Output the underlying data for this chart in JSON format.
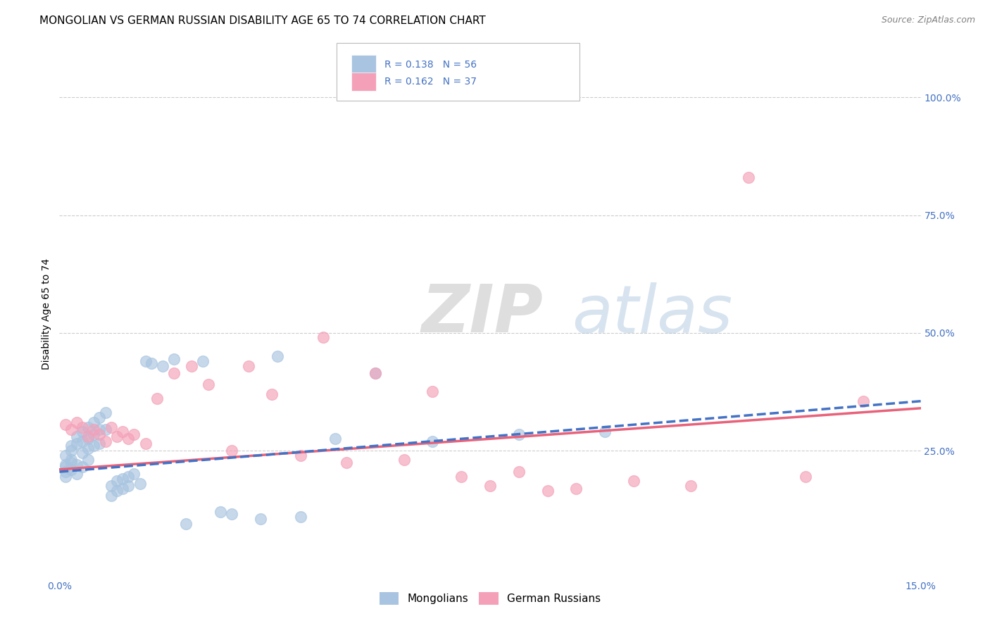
{
  "title": "MONGOLIAN VS GERMAN RUSSIAN DISABILITY AGE 65 TO 74 CORRELATION CHART",
  "source": "Source: ZipAtlas.com",
  "ylabel": "Disability Age 65 to 74",
  "xlim": [
    0.0,
    0.15
  ],
  "ylim": [
    -0.02,
    1.1
  ],
  "yticks_right": [
    0.25,
    0.5,
    0.75,
    1.0
  ],
  "ytick_labels_right": [
    "25.0%",
    "50.0%",
    "75.0%",
    "100.0%"
  ],
  "mongolian_color": "#a8c4e0",
  "german_russian_color": "#f4a0b8",
  "mongolian_line_color": "#4472c4",
  "german_russian_line_color": "#e8627a",
  "mongolian_line_style": "--",
  "german_russian_line_style": "-",
  "r_mongolian": 0.138,
  "n_mongolian": 56,
  "r_german_russian": 0.162,
  "n_german_russian": 37,
  "legend_label_mongolian": "Mongolians",
  "legend_label_german_russian": "German Russians",
  "title_fontsize": 11,
  "axis_label_fontsize": 10,
  "tick_fontsize": 10,
  "source_fontsize": 9,
  "mongolian_x": [
    0.001,
    0.001,
    0.001,
    0.001,
    0.001,
    0.002,
    0.002,
    0.002,
    0.002,
    0.002,
    0.003,
    0.003,
    0.003,
    0.003,
    0.004,
    0.004,
    0.004,
    0.004,
    0.005,
    0.005,
    0.005,
    0.005,
    0.006,
    0.006,
    0.006,
    0.007,
    0.007,
    0.007,
    0.008,
    0.008,
    0.009,
    0.009,
    0.01,
    0.01,
    0.011,
    0.011,
    0.012,
    0.012,
    0.013,
    0.014,
    0.015,
    0.016,
    0.018,
    0.02,
    0.022,
    0.025,
    0.028,
    0.03,
    0.035,
    0.038,
    0.042,
    0.048,
    0.055,
    0.065,
    0.08,
    0.095
  ],
  "mongolian_y": [
    0.22,
    0.24,
    0.215,
    0.195,
    0.205,
    0.25,
    0.23,
    0.21,
    0.26,
    0.225,
    0.28,
    0.265,
    0.22,
    0.2,
    0.29,
    0.27,
    0.245,
    0.215,
    0.3,
    0.275,
    0.255,
    0.23,
    0.31,
    0.285,
    0.26,
    0.32,
    0.295,
    0.265,
    0.33,
    0.295,
    0.175,
    0.155,
    0.185,
    0.165,
    0.19,
    0.17,
    0.195,
    0.175,
    0.2,
    0.18,
    0.44,
    0.435,
    0.43,
    0.445,
    0.095,
    0.44,
    0.12,
    0.115,
    0.105,
    0.45,
    0.11,
    0.275,
    0.415,
    0.27,
    0.285,
    0.29
  ],
  "german_russian_x": [
    0.001,
    0.002,
    0.003,
    0.004,
    0.005,
    0.006,
    0.007,
    0.008,
    0.009,
    0.01,
    0.011,
    0.012,
    0.013,
    0.015,
    0.017,
    0.02,
    0.023,
    0.026,
    0.03,
    0.033,
    0.037,
    0.042,
    0.046,
    0.05,
    0.055,
    0.06,
    0.065,
    0.07,
    0.075,
    0.08,
    0.085,
    0.09,
    0.1,
    0.11,
    0.12,
    0.13,
    0.14
  ],
  "german_russian_y": [
    0.305,
    0.295,
    0.31,
    0.3,
    0.28,
    0.295,
    0.285,
    0.27,
    0.3,
    0.28,
    0.29,
    0.275,
    0.285,
    0.265,
    0.36,
    0.415,
    0.43,
    0.39,
    0.25,
    0.43,
    0.37,
    0.24,
    0.49,
    0.225,
    0.415,
    0.23,
    0.375,
    0.195,
    0.175,
    0.205,
    0.165,
    0.17,
    0.185,
    0.175,
    0.83,
    0.195,
    0.355
  ],
  "watermark_zip": "ZIP",
  "watermark_atlas": "atlas",
  "background_color": "#ffffff",
  "grid_color": "#cccccc",
  "grid_linestyle": "--",
  "grid_linewidth": 0.8
}
